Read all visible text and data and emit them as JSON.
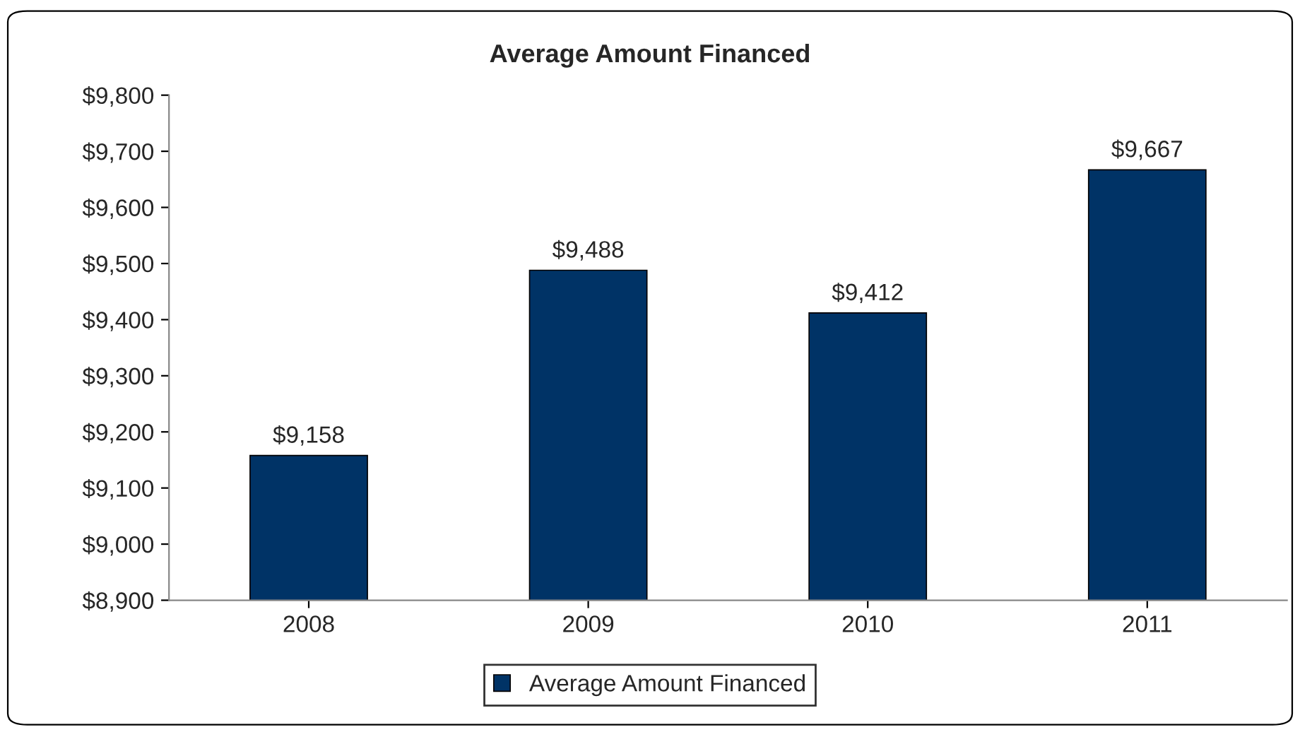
{
  "chart_data": {
    "type": "bar",
    "title": "Average Amount Financed",
    "categories": [
      "2008",
      "2009",
      "2010",
      "2011"
    ],
    "series": [
      {
        "name": "Average Amount Financed",
        "color": "#003366",
        "values": [
          9158,
          9488,
          9412,
          9667
        ],
        "value_labels": [
          "$9,158",
          "$9,488",
          "$9,412",
          "$9,667"
        ]
      }
    ],
    "ylim": [
      8900,
      9800
    ],
    "yticks": [
      {
        "value": 8900,
        "label": "$8,900"
      },
      {
        "value": 9000,
        "label": "$9,000"
      },
      {
        "value": 9100,
        "label": "$9,100"
      },
      {
        "value": 9200,
        "label": "$9,200"
      },
      {
        "value": 9300,
        "label": "$9,300"
      },
      {
        "value": 9400,
        "label": "$9,400"
      },
      {
        "value": 9500,
        "label": "$9,500"
      },
      {
        "value": 9600,
        "label": "$9,600"
      },
      {
        "value": 9700,
        "label": "$9,700"
      },
      {
        "value": 9800,
        "label": "$9,800"
      }
    ],
    "grid": false,
    "legend": "bottom"
  }
}
